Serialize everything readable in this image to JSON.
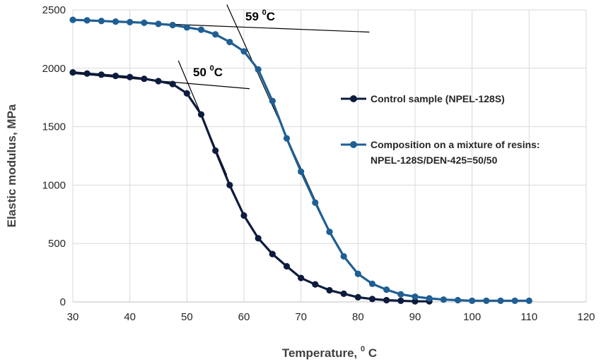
{
  "chart_data": {
    "type": "line",
    "xlabel": "Temperature, ",
    "xlabel_sup": "0",
    "xlabel_unit": " C",
    "ylabel": "Elastic modulus, MPa",
    "xlim": [
      30,
      120
    ],
    "ylim": [
      0,
      2500
    ],
    "x_ticks": [
      "30",
      "40",
      "50",
      "60",
      "70",
      "80",
      "90",
      "100",
      "110",
      "120"
    ],
    "y_ticks": [
      "0",
      "500",
      "1000",
      "1500",
      "2000",
      "2500"
    ],
    "grid": true,
    "legend_position": "right",
    "series": [
      {
        "name": "Control sample (NPEL-128S)",
        "color": "#0d1b3d",
        "x": [
          30,
          32.5,
          35,
          37.5,
          40,
          42.5,
          45,
          47.5,
          50,
          52.5,
          55,
          57.5,
          60,
          62.5,
          65,
          67.5,
          70,
          72.5,
          75,
          77.5,
          80,
          82.5,
          85,
          87.5,
          90,
          92.5
        ],
        "y": [
          1965,
          1955,
          1945,
          1935,
          1925,
          1910,
          1890,
          1865,
          1785,
          1605,
          1295,
          1000,
          740,
          545,
          410,
          305,
          205,
          150,
          100,
          70,
          40,
          25,
          15,
          10,
          5,
          5
        ]
      },
      {
        "name": "Composition on a mixture of resins:",
        "name_line2": "NPEL-128S/DEN-425=50/50",
        "color": "#1f5f93",
        "x": [
          30,
          32.5,
          35,
          37.5,
          40,
          42.5,
          45,
          47.5,
          50,
          52.5,
          55,
          57.5,
          60,
          62.5,
          65,
          67.5,
          70,
          72.5,
          75,
          77.5,
          80,
          82.5,
          85,
          87.5,
          90,
          92.5,
          95,
          97.5,
          100,
          102.5,
          105,
          107.5,
          110
        ],
        "y": [
          2415,
          2410,
          2405,
          2400,
          2395,
          2390,
          2380,
          2370,
          2350,
          2330,
          2290,
          2225,
          2145,
          1990,
          1720,
          1400,
          1115,
          850,
          600,
          390,
          240,
          155,
          105,
          65,
          45,
          30,
          20,
          15,
          10,
          10,
          10,
          10,
          10
        ]
      }
    ],
    "annotations": [
      {
        "label": "59 ",
        "sup": "0",
        "unit": "C",
        "tangent1": [
          [
            30,
            2410
          ],
          [
            82,
            2310
          ]
        ],
        "tangent2": [
          [
            57,
            2545
          ],
          [
            75,
            600
          ]
        ]
      },
      {
        "label": "50 ",
        "sup": "0",
        "unit": "C",
        "tangent1": [
          [
            30,
            1955
          ],
          [
            61,
            1825
          ]
        ],
        "tangent2": [
          [
            48.5,
            2065
          ],
          [
            57,
            1085
          ]
        ]
      }
    ]
  }
}
